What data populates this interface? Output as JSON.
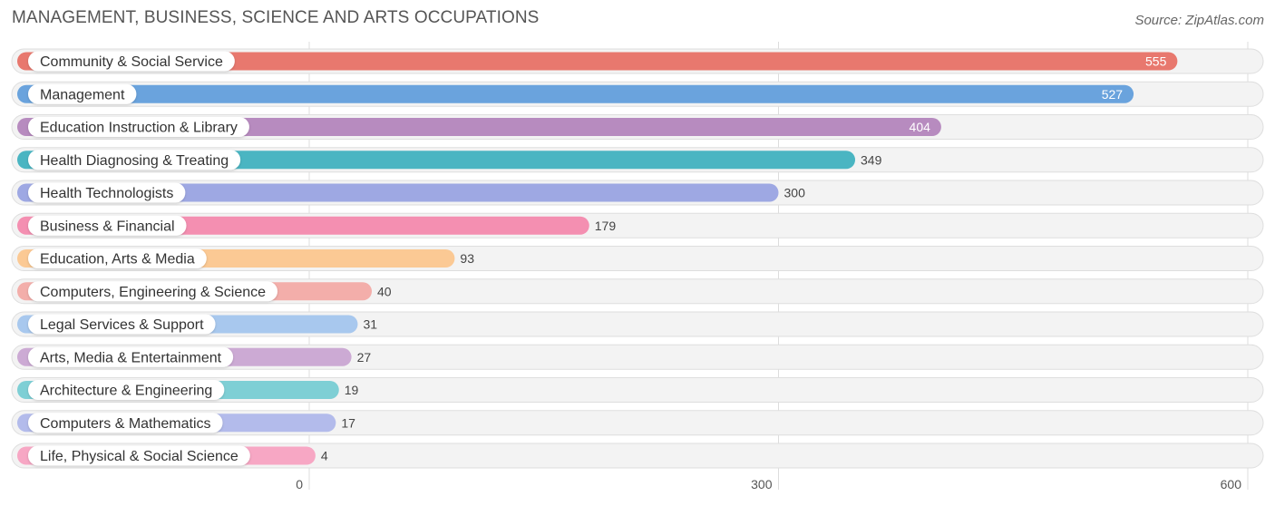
{
  "title": "MANAGEMENT, BUSINESS, SCIENCE AND ARTS OCCUPATIONS",
  "source": "Source: ZipAtlas.com",
  "chart_data": {
    "type": "bar",
    "orientation": "horizontal",
    "title": "MANAGEMENT, BUSINESS, SCIENCE AND ARTS OCCUPATIONS",
    "categories": [
      "Community & Social Service",
      "Management",
      "Education Instruction & Library",
      "Health Diagnosing & Treating",
      "Health Technologists",
      "Business & Financial",
      "Education, Arts & Media",
      "Computers, Engineering & Science",
      "Legal Services & Support",
      "Arts, Media & Entertainment",
      "Architecture & Engineering",
      "Computers & Mathematics",
      "Life, Physical & Social Science"
    ],
    "values": [
      555,
      527,
      404,
      349,
      300,
      179,
      93,
      40,
      31,
      27,
      19,
      17,
      4
    ],
    "colors": [
      "#e8786e",
      "#6aa3dd",
      "#b78bbf",
      "#4ab5c2",
      "#9ea8e3",
      "#f48fb1",
      "#fbc994",
      "#f3aeaa",
      "#a8c8ee",
      "#ccaad4",
      "#7ecfd5",
      "#b3bbeb",
      "#f7a7c4"
    ],
    "xticks": [
      0,
      300,
      600
    ],
    "xlim": [
      0,
      600
    ],
    "grid": true
  }
}
